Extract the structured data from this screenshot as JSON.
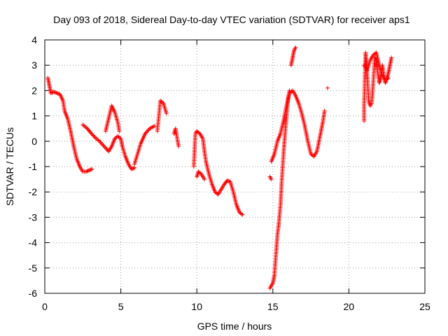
{
  "chart_data": {
    "type": "scatter",
    "title": "Day 093 of 2018, Sidereal Day-to-day VTEC variation (SDTVAR) for receiver aps1",
    "xlabel": "GPS time / hours",
    "ylabel": "SDTVAR / TECUs",
    "xlim": [
      0,
      25
    ],
    "ylim": [
      -6,
      4
    ],
    "xticks": [
      "0",
      "5",
      "10",
      "15",
      "20",
      "25"
    ],
    "yticks": [
      "-6",
      "-5",
      "-4",
      "-3",
      "-2",
      "-1",
      "0",
      "1",
      "2",
      "3",
      "4"
    ],
    "grid": true,
    "marker": "+",
    "color": "#ff0000",
    "series": [
      {
        "name": "SDTVAR",
        "segments": [
          [
            [
              0.2,
              2.5
            ],
            [
              0.3,
              2.2
            ],
            [
              0.4,
              1.9
            ],
            [
              0.6,
              1.95
            ],
            [
              0.8,
              1.9
            ],
            [
              1.0,
              1.85
            ],
            [
              1.2,
              1.6
            ],
            [
              1.3,
              1.2
            ],
            [
              1.5,
              0.9
            ],
            [
              1.7,
              0.4
            ],
            [
              1.9,
              -0.2
            ],
            [
              2.1,
              -0.7
            ],
            [
              2.3,
              -1.0
            ],
            [
              2.5,
              -1.2
            ],
            [
              2.7,
              -1.2
            ],
            [
              2.9,
              -1.15
            ],
            [
              3.1,
              -1.1
            ]
          ],
          [
            [
              2.5,
              0.65
            ],
            [
              2.8,
              0.5
            ],
            [
              3.0,
              0.35
            ],
            [
              3.3,
              0.15
            ],
            [
              3.6,
              0.0
            ],
            [
              3.9,
              -0.2
            ],
            [
              4.2,
              -0.4
            ],
            [
              4.4,
              -0.2
            ],
            [
              4.6,
              0.1
            ],
            [
              4.8,
              0.2
            ],
            [
              5.0,
              0.1
            ],
            [
              5.1,
              -0.2
            ],
            [
              5.3,
              -0.6
            ],
            [
              5.5,
              -0.9
            ],
            [
              5.7,
              -1.1
            ],
            [
              5.9,
              -1.05
            ]
          ],
          [
            [
              4.0,
              0.4
            ],
            [
              4.2,
              0.9
            ],
            [
              4.4,
              1.4
            ],
            [
              4.6,
              1.15
            ],
            [
              4.8,
              0.75
            ],
            [
              4.9,
              0.4
            ]
          ],
          [
            [
              5.9,
              -0.9
            ],
            [
              6.1,
              -0.5
            ],
            [
              6.3,
              -0.1
            ],
            [
              6.6,
              0.3
            ],
            [
              6.9,
              0.5
            ],
            [
              7.2,
              0.6
            ]
          ],
          [
            [
              7.4,
              0.4
            ],
            [
              7.6,
              1.6
            ],
            [
              7.8,
              1.5
            ],
            [
              8.0,
              1.1
            ]
          ],
          [
            [
              8.5,
              0.3
            ],
            [
              8.6,
              0.5
            ],
            [
              8.8,
              -0.2
            ]
          ],
          [
            [
              9.8,
              -1.0
            ],
            [
              9.9,
              0.3
            ],
            [
              10.0,
              0.4
            ],
            [
              10.2,
              0.3
            ],
            [
              10.4,
              0.1
            ],
            [
              10.5,
              -0.4
            ],
            [
              10.6,
              -0.8
            ],
            [
              10.8,
              -1.3
            ],
            [
              11.0,
              -1.7
            ],
            [
              11.2,
              -2.0
            ],
            [
              11.4,
              -2.1
            ],
            [
              11.6,
              -1.9
            ],
            [
              11.8,
              -1.7
            ],
            [
              12.0,
              -1.55
            ],
            [
              12.2,
              -1.6
            ],
            [
              12.4,
              -2.0
            ],
            [
              12.6,
              -2.5
            ],
            [
              12.8,
              -2.8
            ],
            [
              13.0,
              -2.9
            ]
          ],
          [
            [
              10.0,
              -1.4
            ],
            [
              10.1,
              -1.2
            ],
            [
              10.3,
              -1.3
            ],
            [
              10.5,
              -1.5
            ]
          ],
          [
            [
              14.8,
              -1.4
            ],
            [
              14.9,
              -1.5
            ]
          ],
          [
            [
              14.8,
              -5.8
            ],
            [
              15.0,
              -5.6
            ],
            [
              15.1,
              -5.3
            ],
            [
              15.2,
              -4.5
            ],
            [
              15.3,
              -3.7
            ],
            [
              15.4,
              -3.2
            ],
            [
              15.5,
              -2.5
            ],
            [
              15.6,
              -1.4
            ],
            [
              15.7,
              -0.5
            ],
            [
              15.8,
              0.3
            ],
            [
              15.9,
              1.0
            ],
            [
              16.0,
              1.7
            ],
            [
              16.1,
              2.0
            ]
          ],
          [
            [
              14.9,
              -0.8
            ],
            [
              15.1,
              -0.5
            ],
            [
              15.3,
              0.0
            ],
            [
              15.5,
              0.3
            ],
            [
              15.7,
              0.8
            ],
            [
              15.9,
              1.4
            ],
            [
              16.1,
              1.9
            ],
            [
              16.3,
              2.0
            ],
            [
              16.5,
              1.8
            ],
            [
              16.7,
              1.5
            ],
            [
              16.9,
              1.1
            ],
            [
              17.1,
              0.6
            ],
            [
              17.3,
              0.0
            ],
            [
              17.5,
              -0.5
            ],
            [
              17.7,
              -0.6
            ],
            [
              17.9,
              -0.4
            ],
            [
              18.1,
              0.2
            ],
            [
              18.3,
              0.8
            ],
            [
              18.4,
              1.2
            ]
          ],
          [
            [
              16.2,
              3.0
            ],
            [
              16.3,
              3.3
            ],
            [
              16.4,
              3.6
            ],
            [
              16.5,
              3.7
            ]
          ],
          [
            [
              18.6,
              2.1
            ]
          ],
          [
            [
              21.0,
              0.8
            ],
            [
              21.0,
              1.4
            ],
            [
              21.1,
              3.5
            ],
            [
              21.2,
              2.7
            ],
            [
              21.3,
              1.6
            ],
            [
              21.4,
              1.4
            ],
            [
              21.5,
              1.5
            ],
            [
              21.6,
              2.3
            ],
            [
              21.7,
              3.3
            ],
            [
              21.8,
              3.2
            ],
            [
              21.9,
              2.7
            ],
            [
              22.0,
              2.3
            ],
            [
              22.1,
              2.5
            ],
            [
              22.2,
              3.0
            ],
            [
              22.3,
              2.6
            ],
            [
              22.4,
              2.3
            ],
            [
              22.5,
              2.5
            ],
            [
              22.6,
              2.7
            ],
            [
              22.7,
              3.0
            ],
            [
              22.8,
              3.3
            ]
          ],
          [
            [
              21.0,
              3.0
            ],
            [
              21.2,
              2.8
            ],
            [
              21.4,
              3.2
            ],
            [
              21.6,
              3.4
            ],
            [
              21.8,
              3.5
            ],
            [
              22.0,
              3.0
            ],
            [
              22.2,
              2.6
            ],
            [
              22.4,
              2.4
            ],
            [
              22.6,
              2.5
            ]
          ]
        ]
      }
    ]
  }
}
